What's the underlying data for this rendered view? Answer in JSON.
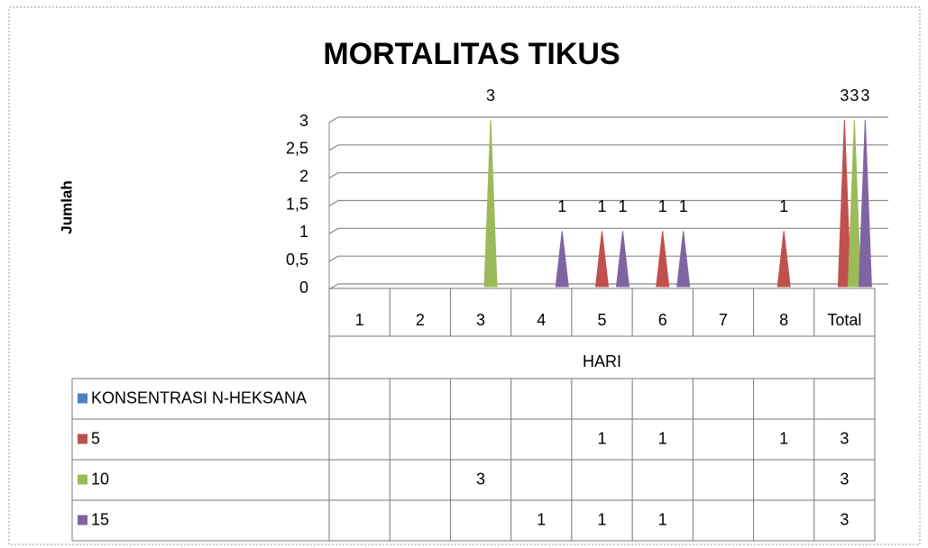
{
  "chart_data": {
    "type": "cone",
    "title": "MORTALITAS TIKUS",
    "y_label": "Jumlah",
    "x_label": "HARI",
    "categories": [
      "1",
      "2",
      "3",
      "4",
      "5",
      "6",
      "7",
      "8",
      "Total"
    ],
    "series": [
      {
        "name": "KONSENTRASI N-HEKSANA",
        "color": "#4f81bd",
        "values": [
          null,
          null,
          null,
          null,
          null,
          null,
          null,
          null,
          null
        ]
      },
      {
        "name": "5",
        "color": "#c0504d",
        "values": [
          null,
          null,
          null,
          null,
          1,
          1,
          null,
          1,
          3
        ]
      },
      {
        "name": "10",
        "color": "#9bbb59",
        "values": [
          null,
          null,
          3,
          null,
          null,
          null,
          null,
          null,
          3
        ]
      },
      {
        "name": "15",
        "color": "#8064a2",
        "values": [
          null,
          null,
          null,
          1,
          1,
          1,
          null,
          null,
          3
        ]
      }
    ],
    "ylim": [
      0,
      3
    ],
    "yticks": [
      0,
      {
        "value": 0.5,
        "label": "0,5"
      },
      1,
      {
        "value": 1.5,
        "label": "1,5"
      },
      2,
      {
        "value": 2.5,
        "label": "2,5"
      },
      3
    ],
    "grid": true,
    "data_table": true
  }
}
